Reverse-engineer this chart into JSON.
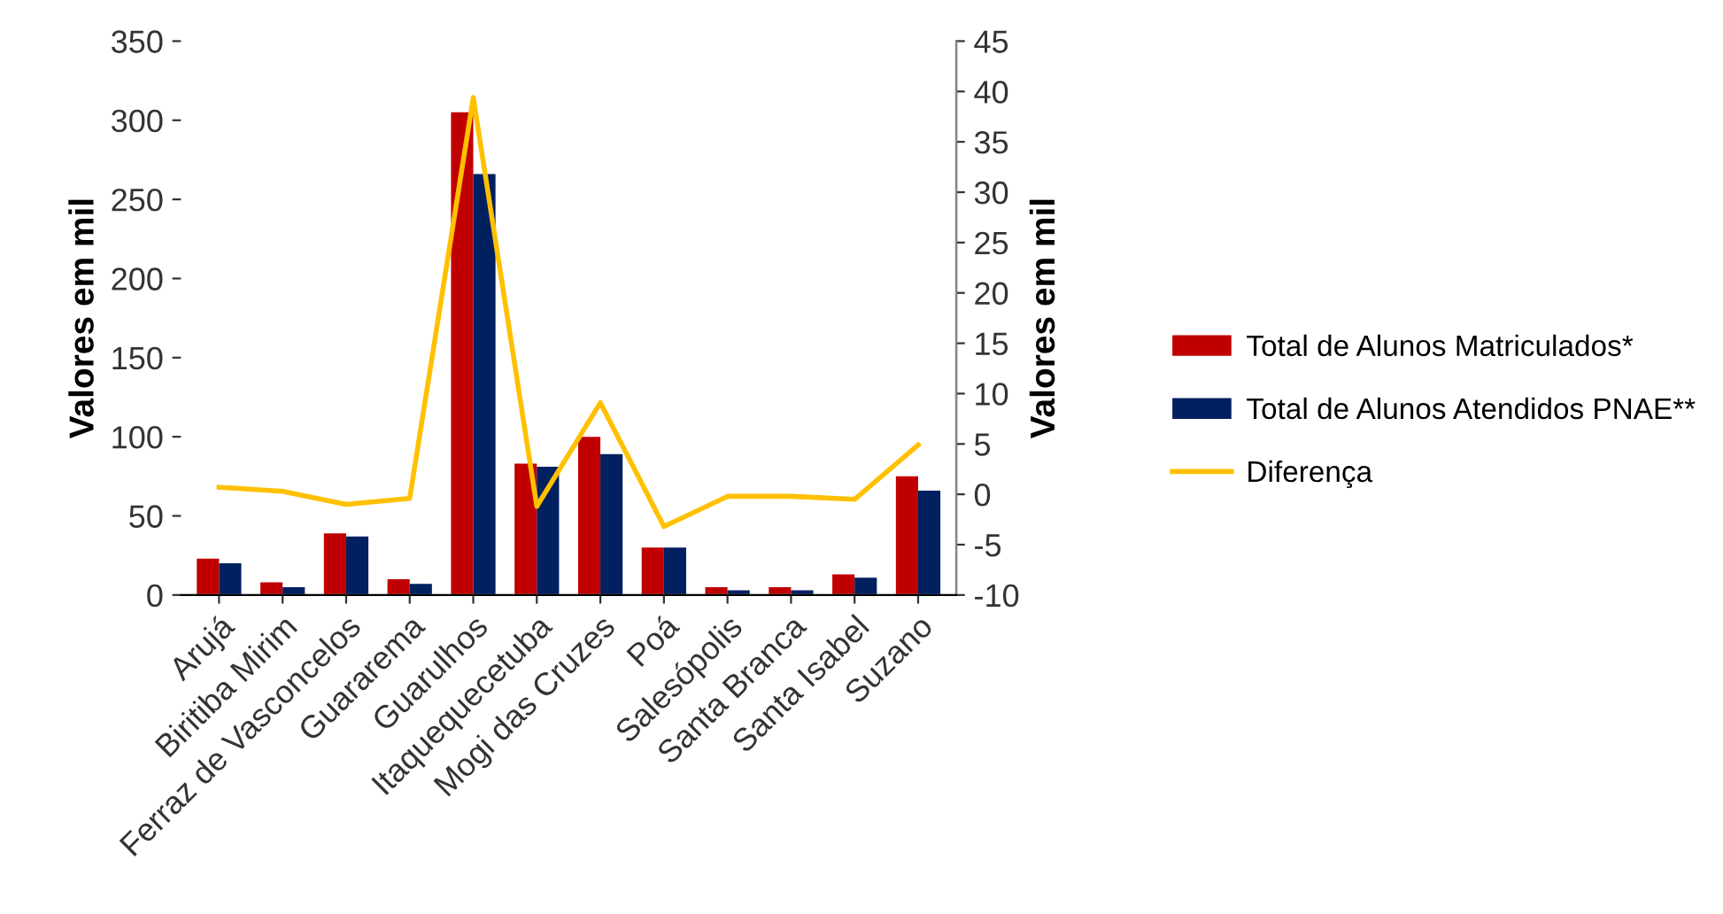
{
  "chart_data": {
    "type": "bar",
    "ylabel": "Valores em mil",
    "y2label": "Valores em mil",
    "categories": [
      "Arujá",
      "Biritiba Mirim",
      "Ferraz de Vasconcelos",
      "Guararema",
      "Guarulhos",
      "Itaquequecetuba",
      "Mogi das Cruzes",
      "Poá",
      "Salesópolis",
      "Santa Branca",
      "Santa Isabel",
      "Suzano"
    ],
    "series": [
      {
        "name": "Total de Alunos Matriculados*",
        "color": "#c00000",
        "values": [
          23,
          8,
          39,
          10,
          305,
          83,
          100,
          30,
          5,
          5,
          13,
          75
        ]
      },
      {
        "name": "Total de Alunos Atendidos PNAE**",
        "color": "#002060",
        "values": [
          20,
          5,
          37,
          7,
          266,
          81,
          89,
          30,
          3,
          3,
          11,
          66
        ]
      },
      {
        "name": "Diferença",
        "type": "line",
        "axis": "y2",
        "color": "#ffc000",
        "values": [
          0.7,
          0.3,
          -1.0,
          -0.4,
          39.4,
          -1.2,
          9.1,
          -3.2,
          -0.2,
          -0.2,
          -0.5,
          4.9
        ]
      }
    ],
    "ylim": [
      0,
      350
    ],
    "yticks": [
      0,
      50,
      100,
      150,
      200,
      250,
      300,
      350
    ],
    "y2lim": [
      -10,
      45
    ],
    "y2ticks": [
      -10,
      -5,
      0,
      5,
      10,
      15,
      20,
      25,
      30,
      35,
      40,
      45
    ],
    "grid": false,
    "legend": "right"
  }
}
